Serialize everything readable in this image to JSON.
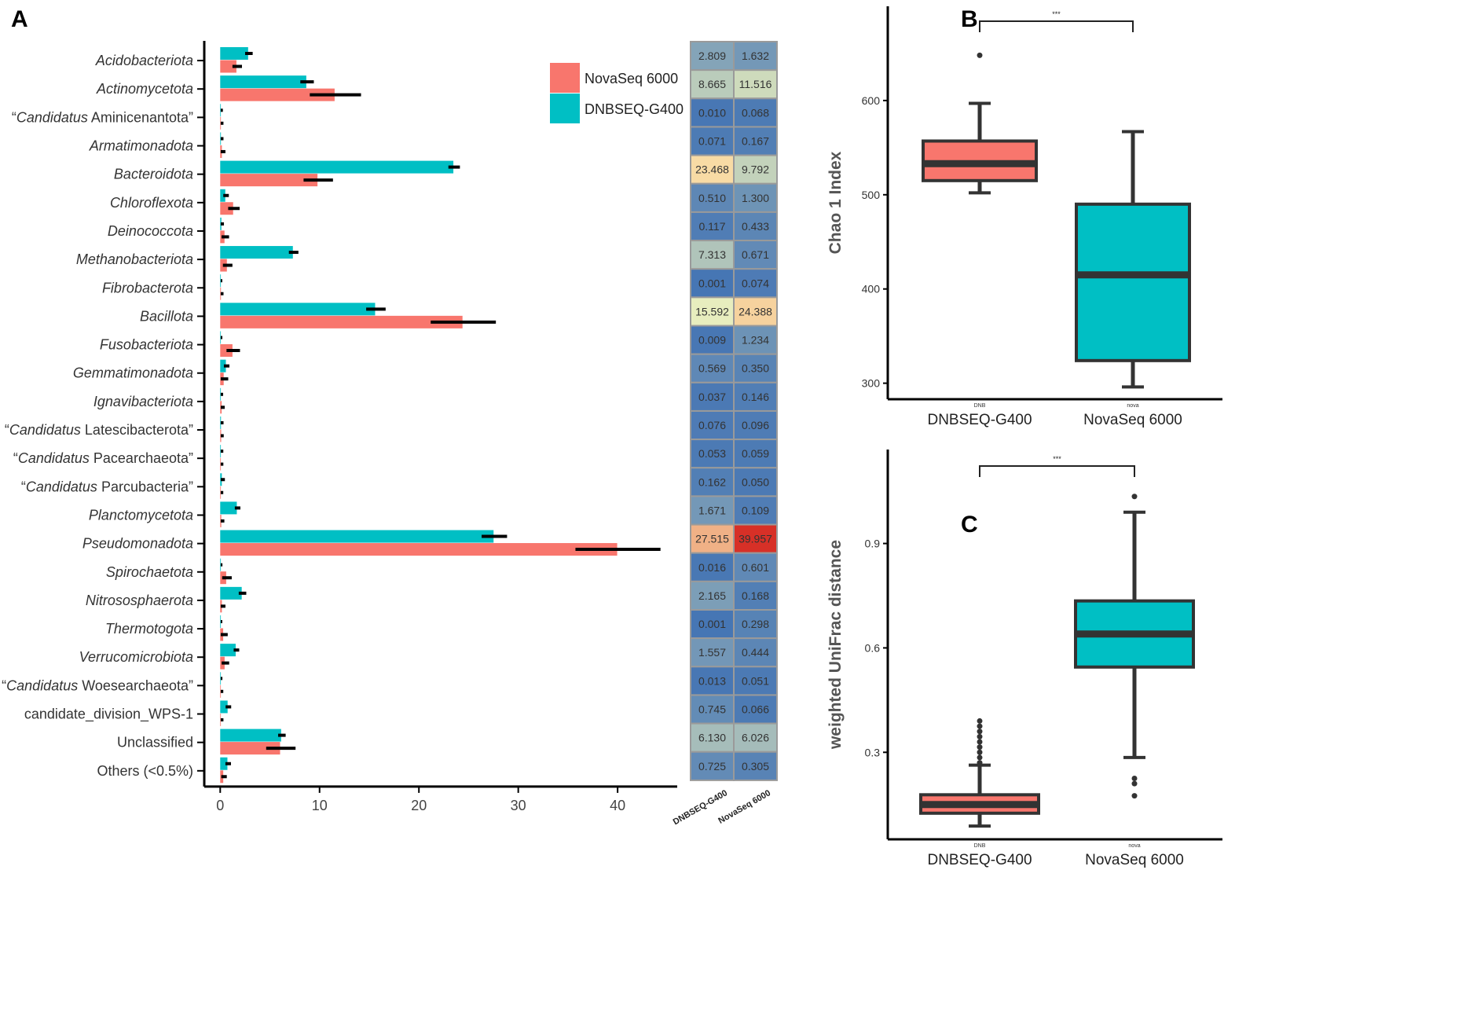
{
  "figure": {
    "panel_labels": [
      "A",
      "B",
      "C"
    ]
  },
  "chart_data": [
    {
      "panel": "A",
      "type": "bar",
      "orientation": "horizontal",
      "categories": [
        {
          "pre": "",
          "italic": "Acidobacteriota",
          "post": ""
        },
        {
          "pre": "",
          "italic": "Actinomycetota",
          "post": ""
        },
        {
          "pre": "“",
          "italic": "Candidatus",
          "post": " Aminicenantota”"
        },
        {
          "pre": "",
          "italic": "Armatimonadota",
          "post": ""
        },
        {
          "pre": "",
          "italic": "Bacteroidota",
          "post": ""
        },
        {
          "pre": "",
          "italic": "Chloroflexota",
          "post": ""
        },
        {
          "pre": "",
          "italic": "Deinococcota",
          "post": ""
        },
        {
          "pre": "",
          "italic": "Methanobacteriota",
          "post": ""
        },
        {
          "pre": "",
          "italic": "Fibrobacterota",
          "post": ""
        },
        {
          "pre": "",
          "italic": "Bacillota",
          "post": ""
        },
        {
          "pre": "",
          "italic": "Fusobacteriota",
          "post": ""
        },
        {
          "pre": "",
          "italic": "Gemmatimonadota",
          "post": ""
        },
        {
          "pre": "",
          "italic": "Ignavibacteriota",
          "post": ""
        },
        {
          "pre": "“",
          "italic": "Candidatus",
          "post": " Latescibacterota”"
        },
        {
          "pre": "“",
          "italic": "Candidatus",
          "post": " Pacearchaeota”"
        },
        {
          "pre": "“",
          "italic": "Candidatus",
          "post": " Parcubacteria”"
        },
        {
          "pre": "",
          "italic": "Planctomycetota",
          "post": ""
        },
        {
          "pre": "",
          "italic": "Pseudomonadota",
          "post": ""
        },
        {
          "pre": "",
          "italic": "Spirochaetota",
          "post": ""
        },
        {
          "pre": "",
          "italic": "Nitrososphaerota",
          "post": ""
        },
        {
          "pre": "",
          "italic": "Thermotogota",
          "post": ""
        },
        {
          "pre": "",
          "italic": "Verrucomicrobiota",
          "post": ""
        },
        {
          "pre": "“",
          "italic": "Candidatus",
          "post": " Woesearchaeota”"
        },
        {
          "pre": "candidate_division_WPS-1",
          "italic": "",
          "post": ""
        },
        {
          "pre": "Unclassified",
          "italic": "",
          "post": ""
        },
        {
          "pre": "Others (<0.5%)",
          "italic": "",
          "post": ""
        }
      ],
      "series": [
        {
          "name": "DNBSEQ-G400",
          "color": "#00BFC4",
          "values": [
            2.809,
            8.665,
            0.01,
            0.071,
            23.468,
            0.51,
            0.117,
            7.313,
            0.001,
            15.592,
            0.009,
            0.569,
            0.037,
            0.076,
            0.053,
            0.162,
            1.671,
            27.515,
            0.016,
            2.165,
            0.001,
            1.557,
            0.013,
            0.745,
            6.13,
            0.725
          ],
          "errors": [
            0.3,
            0.6,
            0.1,
            0.1,
            0.5,
            0.2,
            0.1,
            0.4,
            0.05,
            0.9,
            0.05,
            0.2,
            0.1,
            0.1,
            0.1,
            0.15,
            0.2,
            1.2,
            0.05,
            0.3,
            0.05,
            0.2,
            0.05,
            0.2,
            0.3,
            0.2
          ]
        },
        {
          "name": "NovaSeq 6000",
          "color": "#F8766D",
          "values": [
            1.632,
            11.516,
            0.068,
            0.167,
            9.792,
            1.3,
            0.433,
            0.671,
            0.074,
            24.388,
            1.234,
            0.35,
            0.146,
            0.096,
            0.059,
            0.05,
            0.109,
            39.957,
            0.601,
            0.168,
            0.298,
            0.444,
            0.051,
            0.066,
            6.026,
            0.305
          ],
          "errors": [
            0.4,
            2.5,
            0.1,
            0.2,
            1.4,
            0.5,
            0.3,
            0.4,
            0.1,
            3.2,
            0.6,
            0.3,
            0.15,
            0.1,
            0.1,
            0.1,
            0.15,
            4.2,
            0.4,
            0.2,
            0.3,
            0.3,
            0.1,
            0.1,
            1.4,
            0.2
          ]
        }
      ],
      "xlim": [
        -2,
        46
      ],
      "xticks": [
        0,
        10,
        20,
        30,
        40
      ],
      "legend_position": "top-right",
      "xlabel": "",
      "ylabel": ""
    },
    {
      "panel": "A",
      "type": "heatmap",
      "columns": [
        "DNBSEQ-G400",
        "NovaSeq 6000"
      ],
      "values": [
        [
          "2.809",
          "1.632"
        ],
        [
          "8.665",
          "11.516"
        ],
        [
          "0.010",
          "0.068"
        ],
        [
          "0.071",
          "0.167"
        ],
        [
          "23.468",
          "9.792"
        ],
        [
          "0.510",
          "1.300"
        ],
        [
          "0.117",
          "0.433"
        ],
        [
          "7.313",
          "0.671"
        ],
        [
          "0.001",
          "0.074"
        ],
        [
          "15.592",
          "24.388"
        ],
        [
          "0.009",
          "1.234"
        ],
        [
          "0.569",
          "0.350"
        ],
        [
          "0.037",
          "0.146"
        ],
        [
          "0.076",
          "0.096"
        ],
        [
          "0.053",
          "0.059"
        ],
        [
          "0.162",
          "0.050"
        ],
        [
          "1.671",
          "0.109"
        ],
        [
          "27.515",
          "39.957"
        ],
        [
          "0.016",
          "0.601"
        ],
        [
          "2.165",
          "0.168"
        ],
        [
          "0.001",
          "0.298"
        ],
        [
          "1.557",
          "0.444"
        ],
        [
          "0.013",
          "0.051"
        ],
        [
          "0.745",
          "0.066"
        ],
        [
          "6.130",
          "6.026"
        ],
        [
          "0.725",
          "0.305"
        ]
      ],
      "color_scale": {
        "low": "#4575B4",
        "mid": "#FFFFBF",
        "high": "#D73027",
        "mid_value": 20
      }
    },
    {
      "panel": "B",
      "type": "box",
      "ylabel": "Chao 1 Index",
      "categories": [
        "DNBSEQ-G400",
        "NovaSeq 6000"
      ],
      "small_tick_labels": [
        "DNB",
        "nova"
      ],
      "ylim": [
        283,
        700
      ],
      "yticks": [
        300,
        400,
        500,
        600
      ],
      "significance": "***",
      "boxes": [
        {
          "name": "DNBSEQ-G400",
          "color": "#F8766D",
          "whisker_low": 502,
          "q1": 515,
          "median": 533,
          "q3": 557,
          "whisker_high": 597,
          "outliers": [
            648
          ]
        },
        {
          "name": "NovaSeq 6000",
          "color": "#00BFC4",
          "whisker_low": 296,
          "q1": 324,
          "median": 415,
          "q3": 490,
          "whisker_high": 567,
          "outliers": []
        }
      ]
    },
    {
      "panel": "C",
      "type": "box",
      "ylabel": "weighted UniFrac distance",
      "categories": [
        "DNBSEQ-G400",
        "NovaSeq 6000"
      ],
      "small_tick_labels": [
        "DNB",
        "nova"
      ],
      "ylim": [
        0.05,
        1.17
      ],
      "yticks": [
        0.3,
        0.6,
        0.9
      ],
      "significance": "***",
      "boxes": [
        {
          "name": "DNBSEQ-G400",
          "color": "#F8766D",
          "whisker_low": 0.088,
          "q1": 0.125,
          "median": 0.15,
          "q3": 0.178,
          "whisker_high": 0.263,
          "outliers": [
            0.27,
            0.285,
            0.3,
            0.315,
            0.33,
            0.345,
            0.36,
            0.375,
            0.39
          ]
        },
        {
          "name": "NovaSeq 6000",
          "color": "#00BFC4",
          "whisker_low": 0.285,
          "q1": 0.545,
          "median": 0.64,
          "q3": 0.735,
          "whisker_high": 0.99,
          "outliers": [
            0.175,
            0.21,
            0.225,
            1.035
          ]
        }
      ]
    }
  ]
}
